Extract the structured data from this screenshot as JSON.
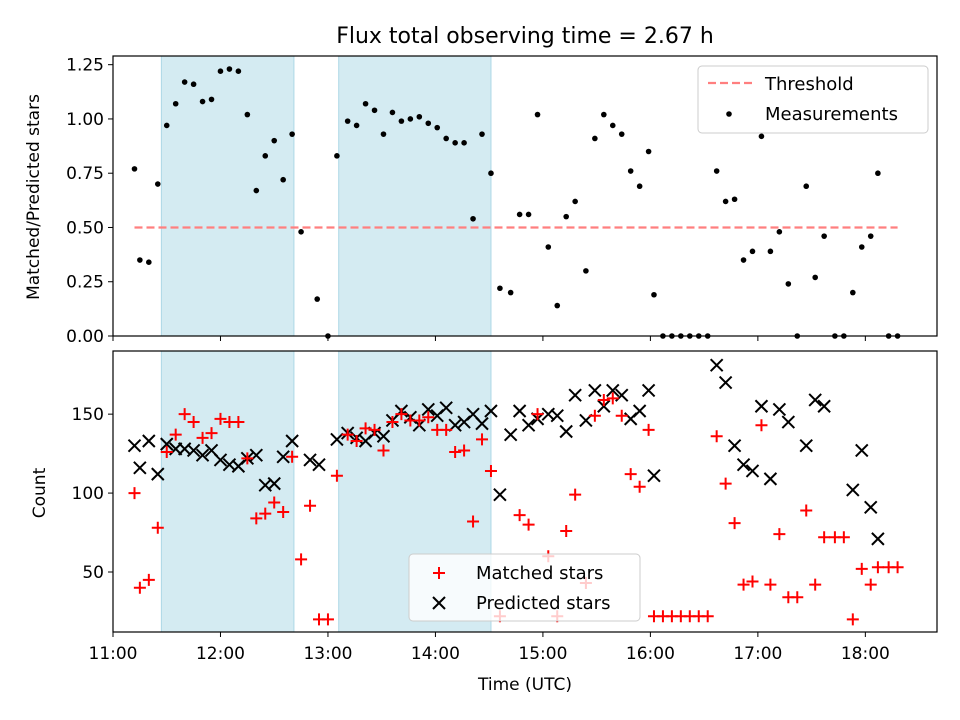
{
  "colors": {
    "band": "#add8e6",
    "threshold": "#ff7f7f",
    "measurement": "#000000",
    "matched": "#ff0000",
    "predicted": "#000000"
  },
  "chart_data": [
    {
      "type": "scatter",
      "title": "Flux total observing time = 2.67 h",
      "xlabel": "",
      "ylabel": "Matched/Predicted stars",
      "xlim": [
        "11:00",
        "18:40"
      ],
      "ylim": [
        0,
        1.29
      ],
      "yticks": [
        "0.00",
        "0.25",
        "0.50",
        "0.75",
        "1.00",
        "1.25"
      ],
      "legend": {
        "position": "top-right",
        "entries": [
          "Threshold",
          "Measurements"
        ]
      },
      "shaded_intervals": [
        [
          "11:27",
          "12:41"
        ],
        [
          "13:06",
          "14:31"
        ]
      ],
      "threshold": {
        "name": "Threshold",
        "value": 0.5,
        "x_range": [
          "11:12",
          "18:18"
        ]
      },
      "series": [
        {
          "name": "Measurements",
          "points": [
            [
              "11:12",
              0.77
            ],
            [
              "11:15",
              0.35
            ],
            [
              "11:20",
              0.34
            ],
            [
              "11:25",
              0.7
            ],
            [
              "11:30",
              0.97
            ],
            [
              "11:35",
              1.07
            ],
            [
              "11:40",
              1.17
            ],
            [
              "11:45",
              1.16
            ],
            [
              "11:50",
              1.08
            ],
            [
              "11:55",
              1.09
            ],
            [
              "12:00",
              1.22
            ],
            [
              "12:05",
              1.23
            ],
            [
              "12:10",
              1.22
            ],
            [
              "12:15",
              1.02
            ],
            [
              "12:20",
              0.67
            ],
            [
              "12:25",
              0.83
            ],
            [
              "12:30",
              0.9
            ],
            [
              "12:35",
              0.72
            ],
            [
              "12:40",
              0.93
            ],
            [
              "12:45",
              0.48
            ],
            [
              "12:54",
              0.17
            ],
            [
              "13:00",
              0.0
            ],
            [
              "13:05",
              0.83
            ],
            [
              "13:11",
              0.99
            ],
            [
              "13:16",
              0.97
            ],
            [
              "13:21",
              1.07
            ],
            [
              "13:26",
              1.04
            ],
            [
              "13:31",
              0.93
            ],
            [
              "13:36",
              1.03
            ],
            [
              "13:41",
              0.99
            ],
            [
              "13:46",
              1.0
            ],
            [
              "13:51",
              1.01
            ],
            [
              "13:56",
              0.98
            ],
            [
              "14:01",
              0.96
            ],
            [
              "14:06",
              0.91
            ],
            [
              "14:11",
              0.89
            ],
            [
              "14:16",
              0.89
            ],
            [
              "14:21",
              0.54
            ],
            [
              "14:26",
              0.93
            ],
            [
              "14:31",
              0.75
            ],
            [
              "14:36",
              0.22
            ],
            [
              "14:42",
              0.2
            ],
            [
              "14:47",
              0.56
            ],
            [
              "14:52",
              0.56
            ],
            [
              "14:57",
              1.02
            ],
            [
              "15:03",
              0.41
            ],
            [
              "15:08",
              0.14
            ],
            [
              "15:13",
              0.55
            ],
            [
              "15:18",
              0.62
            ],
            [
              "15:24",
              0.3
            ],
            [
              "15:29",
              0.91
            ],
            [
              "15:34",
              1.02
            ],
            [
              "15:39",
              0.97
            ],
            [
              "15:44",
              0.93
            ],
            [
              "15:49",
              0.76
            ],
            [
              "15:54",
              0.69
            ],
            [
              "15:59",
              0.85
            ],
            [
              "16:02",
              0.19
            ],
            [
              "16:07",
              0.0
            ],
            [
              "16:12",
              0.0
            ],
            [
              "16:17",
              0.0
            ],
            [
              "16:22",
              0.0
            ],
            [
              "16:27",
              0.0
            ],
            [
              "16:32",
              0.0
            ],
            [
              "16:37",
              0.76
            ],
            [
              "16:42",
              0.62
            ],
            [
              "16:47",
              0.63
            ],
            [
              "16:52",
              0.35
            ],
            [
              "16:57",
              0.39
            ],
            [
              "17:02",
              0.92
            ],
            [
              "17:07",
              0.39
            ],
            [
              "17:12",
              0.48
            ],
            [
              "17:17",
              0.24
            ],
            [
              "17:22",
              0.0
            ],
            [
              "17:27",
              0.69
            ],
            [
              "17:32",
              0.27
            ],
            [
              "17:37",
              0.46
            ],
            [
              "17:43",
              0.0
            ],
            [
              "17:48",
              0.0
            ],
            [
              "17:53",
              0.2
            ],
            [
              "17:58",
              0.41
            ],
            [
              "18:03",
              0.46
            ],
            [
              "18:07",
              0.75
            ],
            [
              "18:13",
              0.0
            ],
            [
              "18:18",
              0.0
            ]
          ]
        }
      ]
    },
    {
      "type": "scatter",
      "title": "",
      "xlabel": "Time (UTC)",
      "ylabel": "Count",
      "xlim": [
        "11:00",
        "18:40"
      ],
      "xticks": [
        "11:00",
        "12:00",
        "13:00",
        "14:00",
        "15:00",
        "16:00",
        "17:00",
        "18:00"
      ],
      "ylim": [
        12,
        190
      ],
      "yticks": [
        "50",
        "100",
        "150"
      ],
      "legend": {
        "position": "bottom-center",
        "entries": [
          "Matched stars",
          "Predicted stars"
        ]
      },
      "shaded_intervals": [
        [
          "11:27",
          "12:41"
        ],
        [
          "13:06",
          "14:31"
        ]
      ],
      "series": [
        {
          "name": "Matched stars",
          "points": [
            [
              "11:12",
              100
            ],
            [
              "11:15",
              40
            ],
            [
              "11:20",
              45
            ],
            [
              "11:25",
              78
            ],
            [
              "11:30",
              126
            ],
            [
              "11:35",
              137
            ],
            [
              "11:40",
              150
            ],
            [
              "11:45",
              145
            ],
            [
              "11:50",
              135
            ],
            [
              "11:55",
              138
            ],
            [
              "12:00",
              147
            ],
            [
              "12:05",
              145
            ],
            [
              "12:10",
              145
            ],
            [
              "12:15",
              122
            ],
            [
              "12:20",
              84
            ],
            [
              "12:25",
              87
            ],
            [
              "12:30",
              94
            ],
            [
              "12:35",
              88
            ],
            [
              "12:40",
              123
            ],
            [
              "12:45",
              58
            ],
            [
              "12:50",
              92
            ],
            [
              "12:55",
              20
            ],
            [
              "13:00",
              20
            ],
            [
              "13:05",
              111
            ],
            [
              "13:11",
              137
            ],
            [
              "13:16",
              133
            ],
            [
              "13:21",
              141
            ],
            [
              "13:26",
              140
            ],
            [
              "13:31",
              127
            ],
            [
              "13:36",
              145
            ],
            [
              "13:41",
              150
            ],
            [
              "13:46",
              146
            ],
            [
              "13:51",
              146
            ],
            [
              "13:56",
              148
            ],
            [
              "14:01",
              140
            ],
            [
              "14:06",
              140
            ],
            [
              "14:11",
              126
            ],
            [
              "14:16",
              127
            ],
            [
              "14:21",
              82
            ],
            [
              "14:26",
              134
            ],
            [
              "14:31",
              114
            ],
            [
              "14:36",
              22
            ],
            [
              "14:47",
              86
            ],
            [
              "14:52",
              80
            ],
            [
              "14:57",
              150
            ],
            [
              "15:03",
              60
            ],
            [
              "15:08",
              22
            ],
            [
              "15:13",
              76
            ],
            [
              "15:18",
              99
            ],
            [
              "15:24",
              43
            ],
            [
              "15:29",
              149
            ],
            [
              "15:34",
              159
            ],
            [
              "15:39",
              160
            ],
            [
              "15:44",
              149
            ],
            [
              "15:49",
              112
            ],
            [
              "15:54",
              104
            ],
            [
              "15:59",
              140
            ],
            [
              "16:02",
              22
            ],
            [
              "16:07",
              22
            ],
            [
              "16:12",
              22
            ],
            [
              "16:17",
              22
            ],
            [
              "16:22",
              22
            ],
            [
              "16:27",
              22
            ],
            [
              "16:32",
              22
            ],
            [
              "16:37",
              136
            ],
            [
              "16:42",
              106
            ],
            [
              "16:47",
              81
            ],
            [
              "16:52",
              42
            ],
            [
              "16:57",
              44
            ],
            [
              "17:02",
              143
            ],
            [
              "17:07",
              42
            ],
            [
              "17:12",
              74
            ],
            [
              "17:17",
              34
            ],
            [
              "17:22",
              34
            ],
            [
              "17:27",
              89
            ],
            [
              "17:32",
              42
            ],
            [
              "17:37",
              72
            ],
            [
              "17:43",
              72
            ],
            [
              "17:48",
              72
            ],
            [
              "17:53",
              20
            ],
            [
              "17:58",
              52
            ],
            [
              "18:03",
              42
            ],
            [
              "18:07",
              53
            ],
            [
              "18:13",
              53
            ],
            [
              "18:18",
              53
            ]
          ]
        },
        {
          "name": "Predicted stars",
          "points": [
            [
              "11:12",
              130
            ],
            [
              "11:15",
              116
            ],
            [
              "11:20",
              133
            ],
            [
              "11:25",
              112
            ],
            [
              "11:30",
              131
            ],
            [
              "11:35",
              128
            ],
            [
              "11:40",
              128
            ],
            [
              "11:45",
              127
            ],
            [
              "11:50",
              124
            ],
            [
              "11:55",
              127
            ],
            [
              "12:00",
              121
            ],
            [
              "12:05",
              118
            ],
            [
              "12:10",
              117
            ],
            [
              "12:15",
              122
            ],
            [
              "12:20",
              124
            ],
            [
              "12:25",
              105
            ],
            [
              "12:30",
              106
            ],
            [
              "12:35",
              123
            ],
            [
              "12:40",
              133
            ],
            [
              "12:50",
              121
            ],
            [
              "12:55",
              118
            ],
            [
              "13:05",
              134
            ],
            [
              "13:11",
              138
            ],
            [
              "13:16",
              135
            ],
            [
              "13:21",
              133
            ],
            [
              "13:26",
              138
            ],
            [
              "13:31",
              136
            ],
            [
              "13:36",
              146
            ],
            [
              "13:41",
              152
            ],
            [
              "13:46",
              148
            ],
            [
              "13:51",
              143
            ],
            [
              "13:56",
              153
            ],
            [
              "14:01",
              149
            ],
            [
              "14:06",
              154
            ],
            [
              "14:11",
              143
            ],
            [
              "14:16",
              145
            ],
            [
              "14:21",
              150
            ],
            [
              "14:26",
              144
            ],
            [
              "14:31",
              152
            ],
            [
              "14:36",
              99
            ],
            [
              "14:42",
              137
            ],
            [
              "14:47",
              152
            ],
            [
              "14:52",
              143
            ],
            [
              "14:57",
              147
            ],
            [
              "15:03",
              150
            ],
            [
              "15:08",
              149
            ],
            [
              "15:13",
              139
            ],
            [
              "15:18",
              162
            ],
            [
              "15:24",
              146
            ],
            [
              "15:29",
              165
            ],
            [
              "15:34",
              155
            ],
            [
              "15:39",
              165
            ],
            [
              "15:44",
              162
            ],
            [
              "15:49",
              147
            ],
            [
              "15:54",
              152
            ],
            [
              "15:59",
              165
            ],
            [
              "16:02",
              111
            ],
            [
              "16:37",
              181
            ],
            [
              "16:42",
              170
            ],
            [
              "16:47",
              130
            ],
            [
              "16:52",
              118
            ],
            [
              "16:57",
              114
            ],
            [
              "17:02",
              155
            ],
            [
              "17:07",
              109
            ],
            [
              "17:12",
              153
            ],
            [
              "17:17",
              145
            ],
            [
              "17:27",
              130
            ],
            [
              "17:32",
              159
            ],
            [
              "17:37",
              155
            ],
            [
              "17:53",
              102
            ],
            [
              "17:58",
              127
            ],
            [
              "18:03",
              91
            ],
            [
              "18:07",
              71
            ]
          ]
        }
      ]
    }
  ]
}
